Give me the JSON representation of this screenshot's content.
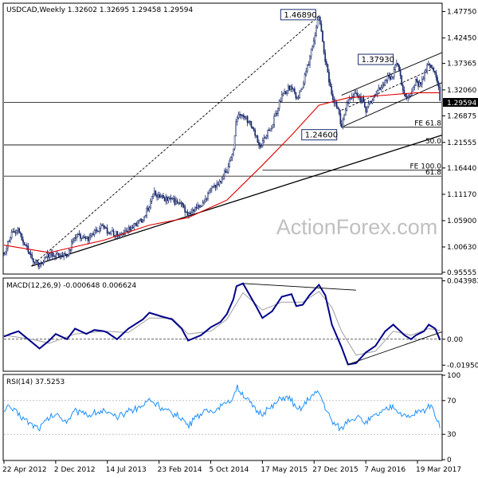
{
  "chart_data": [
    {
      "type": "candlestick",
      "header": "USDCAD,Weekly  1.32602 1.32695 1.29458 1.29594",
      "symbol": "USDCAD",
      "timeframe": "Weekly",
      "ohlc_last": {
        "open": 1.32602,
        "high": 1.32695,
        "low": 1.29458,
        "close": 1.29594
      },
      "current_price_label": "1.29594",
      "watermark": "ActionForex.com",
      "ylim": [
        0.9537,
        1.4926
      ],
      "y_ticks": [
        "1.47750",
        "1.42450",
        "1.37365",
        "1.32060",
        "1.26875",
        "1.21555",
        "1.16440",
        "1.11170",
        "1.05900",
        "1.00630",
        "0.95555"
      ],
      "y_tick_values": [
        1.4775,
        1.4245,
        1.37365,
        1.3206,
        1.26875,
        1.21555,
        1.1644,
        1.1117,
        1.059,
        1.0063,
        0.95555
      ],
      "x_ticks": [
        "22 Apr 2012",
        "2 Dec 2012",
        "14 Jul 2013",
        "23 Feb 2014",
        "5 Oct 2014",
        "17 May 2015",
        "27 Dec 2015",
        "7 Aug 2016",
        "19 Mar 2017"
      ],
      "price_path": [
        [
          "2012-04-22",
          0.995
        ],
        [
          "2012-05-20",
          1.03
        ],
        [
          "2012-06-24",
          1.04
        ],
        [
          "2012-08-19",
          0.985
        ],
        [
          "2012-09-23",
          0.968
        ],
        [
          "2012-11-04",
          0.992
        ],
        [
          "2012-12-02",
          0.993
        ],
        [
          "2013-01-20",
          0.99
        ],
        [
          "2013-02-24",
          1.03
        ],
        [
          "2013-04-14",
          1.02
        ],
        [
          "2013-05-19",
          1.035
        ],
        [
          "2013-06-30",
          1.05
        ],
        [
          "2013-07-14",
          1.035
        ],
        [
          "2013-09-15",
          1.03
        ],
        [
          "2013-10-13",
          1.04
        ],
        [
          "2013-12-15",
          1.063
        ],
        [
          "2014-01-12",
          1.09
        ],
        [
          "2014-01-26",
          1.115
        ],
        [
          "2014-03-09",
          1.105
        ],
        [
          "2014-04-20",
          1.1
        ],
        [
          "2014-06-01",
          1.09
        ],
        [
          "2014-06-29",
          1.07
        ],
        [
          "2014-08-24",
          1.09
        ],
        [
          "2014-10-05",
          1.12
        ],
        [
          "2014-11-16",
          1.14
        ],
        [
          "2014-12-14",
          1.16
        ],
        [
          "2015-01-11",
          1.2
        ],
        [
          "2015-01-25",
          1.27
        ],
        [
          "2015-03-08",
          1.265
        ],
        [
          "2015-04-19",
          1.23
        ],
        [
          "2015-05-10",
          1.2
        ],
        [
          "2015-05-17",
          1.22
        ],
        [
          "2015-06-28",
          1.25
        ],
        [
          "2015-08-09",
          1.31
        ],
        [
          "2015-09-20",
          1.33
        ],
        [
          "2015-10-11",
          1.3
        ],
        [
          "2015-11-08",
          1.33
        ],
        [
          "2015-12-06",
          1.38
        ],
        [
          "2016-01-17",
          1.4689
        ],
        [
          "2016-02-14",
          1.38
        ],
        [
          "2016-03-13",
          1.31
        ],
        [
          "2016-04-10",
          1.28
        ],
        [
          "2016-04-24",
          1.246
        ],
        [
          "2016-05-22",
          1.3
        ],
        [
          "2016-06-26",
          1.31
        ],
        [
          "2016-07-24",
          1.3
        ],
        [
          "2016-08-07",
          1.28
        ],
        [
          "2016-09-18",
          1.31
        ],
        [
          "2016-10-30",
          1.34
        ],
        [
          "2016-12-04",
          1.35
        ],
        [
          "2016-12-18",
          1.3793
        ],
        [
          "2017-01-22",
          1.31
        ],
        [
          "2017-02-19",
          1.31
        ],
        [
          "2017-03-12",
          1.34
        ],
        [
          "2017-03-26",
          1.33
        ],
        [
          "2017-04-16",
          1.35
        ],
        [
          "2017-05-07",
          1.375
        ],
        [
          "2017-06-04",
          1.35
        ],
        [
          "2017-06-18",
          1.33
        ],
        [
          "2017-06-25",
          1.2959
        ]
      ],
      "overlays": [
        {
          "kind": "ema-line",
          "color": "#e00000",
          "path": [
            [
              "2012-04-22",
              1.01
            ],
            [
              "2012-11-04",
              0.995
            ],
            [
              "2013-06-30",
              1.02
            ],
            [
              "2014-01-12",
              1.05
            ],
            [
              "2014-06-29",
              1.065
            ],
            [
              "2014-12-14",
              1.1
            ],
            [
              "2015-05-17",
              1.17
            ],
            [
              "2015-09-20",
              1.23
            ],
            [
              "2016-01-17",
              1.29
            ],
            [
              "2016-05-22",
              1.305
            ],
            [
              "2016-10-30",
              1.31
            ],
            [
              "2017-03-12",
              1.315
            ],
            [
              "2017-06-25",
              1.315
            ]
          ]
        },
        {
          "kind": "trendline",
          "style": "dashed",
          "from": [
            "2012-08-19",
            0.968
          ],
          "to": [
            "2016-01-17",
            1.4689
          ]
        },
        {
          "kind": "trendline",
          "style": "solid",
          "from": [
            "2012-08-19",
            0.968
          ],
          "to": [
            "2017-07-02",
            1.23
          ]
        },
        {
          "kind": "channel-upper",
          "style": "solid",
          "from": [
            "2016-04-24",
            1.31
          ],
          "to": [
            "2017-07-02",
            1.395
          ]
        },
        {
          "kind": "channel-lower",
          "style": "solid",
          "from": [
            "2016-04-24",
            1.246
          ],
          "to": [
            "2017-07-02",
            1.335
          ]
        },
        {
          "kind": "channel-mid",
          "style": "dashed",
          "from": [
            "2016-04-24",
            1.28
          ],
          "to": [
            "2017-06-04",
            1.365
          ]
        },
        {
          "kind": "hline",
          "value": 1.2959
        },
        {
          "kind": "hline",
          "value": 1.246,
          "label": "FE 61.8",
          "from": "2016-04-24"
        },
        {
          "kind": "hline",
          "value": 1.2105,
          "label": "50.0"
        },
        {
          "kind": "hline",
          "value": 1.16,
          "label": "FE 100.0",
          "from": "2015-05-17"
        },
        {
          "kind": "hline",
          "value": 1.148,
          "label": "61.8"
        }
      ],
      "price_callouts": [
        {
          "text": "1.46890",
          "date": "2016-01-17",
          "value": 1.4689
        },
        {
          "text": "1.37930",
          "date": "2016-12-18",
          "value": 1.3793
        },
        {
          "text": "1.24600",
          "date": "2016-04-24",
          "value": 1.246
        }
      ]
    },
    {
      "type": "line",
      "title": "MACD(12,26,9) -0.000648 0.006624",
      "ylim": [
        -0.0235,
        0.0455
      ],
      "y_ticks": [
        "0.043983",
        "0.00",
        "-0.019501"
      ],
      "y_tick_values": [
        0.043983,
        0.0,
        -0.019501
      ],
      "series": [
        {
          "name": "MACD",
          "color": "#00008b",
          "path": [
            [
              "2012-04-22",
              0.002
            ],
            [
              "2012-05-20",
              0.004
            ],
            [
              "2012-06-24",
              0.006
            ],
            [
              "2012-08-19",
              -0.002
            ],
            [
              "2012-09-23",
              -0.007
            ],
            [
              "2012-11-04",
              -0.001
            ],
            [
              "2012-12-02",
              0.004
            ],
            [
              "2013-01-20",
              0.0
            ],
            [
              "2013-02-24",
              0.008
            ],
            [
              "2013-04-14",
              0.004
            ],
            [
              "2013-05-19",
              0.007
            ],
            [
              "2013-06-30",
              0.006
            ],
            [
              "2013-07-14",
              0.005
            ],
            [
              "2013-08-25",
              0.0
            ],
            [
              "2013-10-13",
              0.008
            ],
            [
              "2013-12-15",
              0.015
            ],
            [
              "2014-01-12",
              0.02
            ],
            [
              "2014-03-09",
              0.017
            ],
            [
              "2014-04-20",
              0.015
            ],
            [
              "2014-06-01",
              0.008
            ],
            [
              "2014-06-29",
              -0.001
            ],
            [
              "2014-08-24",
              0.003
            ],
            [
              "2014-10-05",
              0.009
            ],
            [
              "2014-11-16",
              0.013
            ],
            [
              "2014-12-14",
              0.019
            ],
            [
              "2015-01-11",
              0.03
            ],
            [
              "2015-01-25",
              0.04
            ],
            [
              "2015-02-22",
              0.042
            ],
            [
              "2015-04-19",
              0.025
            ],
            [
              "2015-05-17",
              0.016
            ],
            [
              "2015-06-28",
              0.021
            ],
            [
              "2015-08-09",
              0.032
            ],
            [
              "2015-09-20",
              0.034
            ],
            [
              "2015-10-11",
              0.025
            ],
            [
              "2015-11-08",
              0.026
            ],
            [
              "2015-12-06",
              0.033
            ],
            [
              "2016-01-17",
              0.041
            ],
            [
              "2016-02-14",
              0.033
            ],
            [
              "2016-03-13",
              0.011
            ],
            [
              "2016-04-24",
              -0.006
            ],
            [
              "2016-05-22",
              -0.019
            ],
            [
              "2016-06-26",
              -0.018
            ],
            [
              "2016-08-07",
              -0.01
            ],
            [
              "2016-09-18",
              -0.005
            ],
            [
              "2016-10-30",
              0.006
            ],
            [
              "2016-12-04",
              0.011
            ],
            [
              "2017-01-22",
              0.003
            ],
            [
              "2017-02-19",
              0.0
            ],
            [
              "2017-03-12",
              0.003
            ],
            [
              "2017-04-16",
              0.006
            ],
            [
              "2017-05-07",
              0.011
            ],
            [
              "2017-06-04",
              0.008
            ],
            [
              "2017-06-25",
              -0.0006
            ]
          ]
        },
        {
          "name": "Signal",
          "color": "#a0a0a0",
          "path": [
            [
              "2012-04-22",
              0.003
            ],
            [
              "2012-08-19",
              0.0
            ],
            [
              "2012-11-04",
              -0.003
            ],
            [
              "2013-02-24",
              0.004
            ],
            [
              "2013-06-30",
              0.006
            ],
            [
              "2013-10-13",
              0.005
            ],
            [
              "2014-01-12",
              0.016
            ],
            [
              "2014-04-20",
              0.016
            ],
            [
              "2014-06-29",
              0.004
            ],
            [
              "2014-10-05",
              0.006
            ],
            [
              "2014-12-14",
              0.015
            ],
            [
              "2015-02-22",
              0.035
            ],
            [
              "2015-05-17",
              0.022
            ],
            [
              "2015-08-09",
              0.028
            ],
            [
              "2015-11-08",
              0.028
            ],
            [
              "2016-01-17",
              0.036
            ],
            [
              "2016-03-13",
              0.024
            ],
            [
              "2016-04-24",
              0.006
            ],
            [
              "2016-06-26",
              -0.012
            ],
            [
              "2016-09-18",
              -0.009
            ],
            [
              "2016-12-04",
              0.006
            ],
            [
              "2017-02-19",
              0.003
            ],
            [
              "2017-05-07",
              0.008
            ],
            [
              "2017-06-25",
              0.0066
            ]
          ]
        }
      ],
      "trendlines": [
        {
          "style": "solid",
          "from": [
            "2015-02-22",
            0.042
          ],
          "to": [
            "2016-06-26",
            0.037
          ]
        },
        {
          "style": "solid",
          "from": [
            "2016-05-22",
            -0.019
          ],
          "to": [
            "2017-07-02",
            0.0055
          ]
        }
      ],
      "zero_line": true
    },
    {
      "type": "line",
      "title": "RSI(14) 37.5253",
      "ylim": [
        0,
        100
      ],
      "y_ticks": [
        "100",
        "70",
        "30",
        "0"
      ],
      "y_tick_values": [
        100,
        70,
        30,
        0
      ],
      "reference_levels": [
        70,
        30
      ],
      "series": [
        {
          "name": "RSI",
          "color": "#1e90ff",
          "path": [
            [
              "2012-04-22",
              60
            ],
            [
              "2012-05-20",
              62
            ],
            [
              "2012-06-24",
              54
            ],
            [
              "2012-08-19",
              42
            ],
            [
              "2012-09-23",
              38
            ],
            [
              "2012-11-04",
              50
            ],
            [
              "2012-12-02",
              54
            ],
            [
              "2013-01-20",
              46
            ],
            [
              "2013-02-24",
              58
            ],
            [
              "2013-04-14",
              52
            ],
            [
              "2013-05-19",
              56
            ],
            [
              "2013-06-30",
              58
            ],
            [
              "2013-07-14",
              54
            ],
            [
              "2013-08-25",
              50
            ],
            [
              "2013-10-13",
              57
            ],
            [
              "2013-12-15",
              64
            ],
            [
              "2014-01-12",
              72
            ],
            [
              "2014-03-09",
              60
            ],
            [
              "2014-04-20",
              55
            ],
            [
              "2014-06-01",
              50
            ],
            [
              "2014-06-29",
              40
            ],
            [
              "2014-08-24",
              55
            ],
            [
              "2014-10-05",
              58
            ],
            [
              "2014-11-16",
              62
            ],
            [
              "2014-12-14",
              65
            ],
            [
              "2015-01-11",
              75
            ],
            [
              "2015-01-25",
              86
            ],
            [
              "2015-02-22",
              78
            ],
            [
              "2015-04-19",
              58
            ],
            [
              "2015-05-17",
              55
            ],
            [
              "2015-06-28",
              62
            ],
            [
              "2015-08-09",
              74
            ],
            [
              "2015-09-20",
              72
            ],
            [
              "2015-10-11",
              58
            ],
            [
              "2015-11-08",
              62
            ],
            [
              "2015-12-06",
              74
            ],
            [
              "2016-01-17",
              80
            ],
            [
              "2016-02-14",
              62
            ],
            [
              "2016-03-13",
              45
            ],
            [
              "2016-04-24",
              36
            ],
            [
              "2016-05-22",
              48
            ],
            [
              "2016-06-26",
              50
            ],
            [
              "2016-08-07",
              44
            ],
            [
              "2016-09-18",
              52
            ],
            [
              "2016-10-30",
              58
            ],
            [
              "2016-12-04",
              64
            ],
            [
              "2017-01-22",
              50
            ],
            [
              "2017-02-19",
              50
            ],
            [
              "2017-03-12",
              56
            ],
            [
              "2017-04-16",
              58
            ],
            [
              "2017-05-07",
              64
            ],
            [
              "2017-06-04",
              55
            ],
            [
              "2017-06-25",
              37.5
            ]
          ]
        }
      ]
    }
  ]
}
